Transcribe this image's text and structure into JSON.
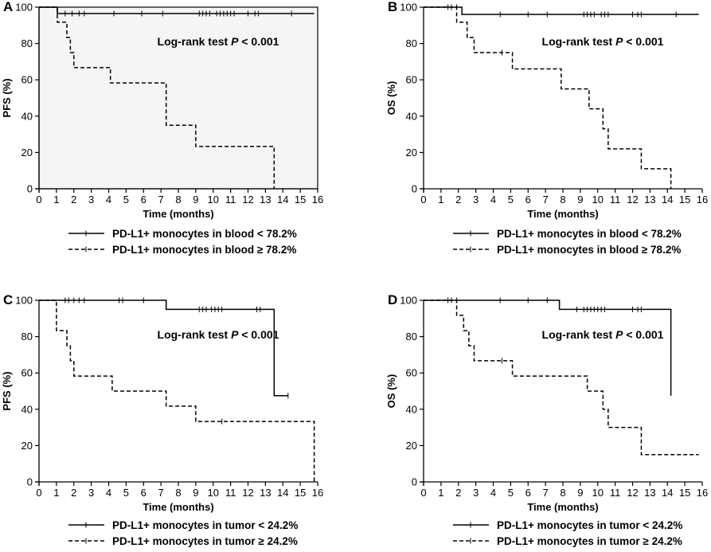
{
  "chart_data": [
    {
      "type": "line",
      "panel": "A",
      "ylabel": "PFS (%)",
      "xlabel": "Time (months)",
      "annotation": {
        "prefix": "Log-rank test ",
        "p": "P",
        "suffix": " < 0.001"
      },
      "xlim": [
        0,
        16
      ],
      "ylim": [
        0,
        100
      ],
      "xticks": [
        0,
        1,
        2,
        3,
        4,
        5,
        6,
        7,
        8,
        9,
        10,
        11,
        12,
        13,
        14,
        15,
        16
      ],
      "yticks": [
        0,
        20,
        40,
        60,
        80,
        100
      ],
      "shaded": true,
      "series": [
        {
          "name": "PD-L1+ monocytes in blood < 78.2%",
          "style": "solid",
          "steps": [
            [
              0,
              100
            ],
            [
              1.05,
              96.5
            ],
            [
              15.8,
              96.5
            ]
          ],
          "censored": [
            [
              1.5,
              96.5
            ],
            [
              1.9,
              96.5
            ],
            [
              2.3,
              96.5
            ],
            [
              2.6,
              96.5
            ],
            [
              4.3,
              96.5
            ],
            [
              5.9,
              96.5
            ],
            [
              7.1,
              96.5
            ],
            [
              9.2,
              96.5
            ],
            [
              9.4,
              96.5
            ],
            [
              9.6,
              96.5
            ],
            [
              9.8,
              96.5
            ],
            [
              10.2,
              96.5
            ],
            [
              10.4,
              96.5
            ],
            [
              10.6,
              96.5
            ],
            [
              10.8,
              96.5
            ],
            [
              11.0,
              96.5
            ],
            [
              11.2,
              96.5
            ],
            [
              12.0,
              96.5
            ],
            [
              12.4,
              96.5
            ],
            [
              12.6,
              96.5
            ],
            [
              14.5,
              96.5
            ]
          ]
        },
        {
          "name": "PD-L1+ monocytes in blood ≥ 78.2%",
          "style": "dashed",
          "steps": [
            [
              0,
              100
            ],
            [
              1.05,
              91.7
            ],
            [
              1.6,
              83.3
            ],
            [
              1.8,
              75
            ],
            [
              2.0,
              66.7
            ],
            [
              4.1,
              58.3
            ],
            [
              7.3,
              35
            ],
            [
              9.0,
              23.3
            ],
            [
              13.5,
              0
            ]
          ],
          "censored": []
        }
      ]
    },
    {
      "type": "line",
      "panel": "B",
      "ylabel": "OS (%)",
      "xlabel": "Time (months)",
      "annotation": {
        "prefix": "Log-rank test ",
        "p": "P",
        "suffix": " < 0.001"
      },
      "xlim": [
        0,
        16
      ],
      "ylim": [
        0,
        100
      ],
      "xticks": [
        0,
        1,
        2,
        3,
        4,
        5,
        6,
        7,
        8,
        9,
        10,
        11,
        12,
        13,
        14,
        15,
        16
      ],
      "yticks": [
        0,
        20,
        40,
        60,
        80,
        100
      ],
      "shaded": false,
      "series": [
        {
          "name": "PD-L1+ monocytes in blood < 78.2%",
          "style": "solid",
          "steps": [
            [
              0,
              100
            ],
            [
              2.2,
              96
            ],
            [
              15.8,
              96
            ]
          ],
          "censored": [
            [
              1.4,
              100
            ],
            [
              1.6,
              100
            ],
            [
              1.9,
              100
            ],
            [
              4.4,
              96
            ],
            [
              6.0,
              96
            ],
            [
              7.1,
              96
            ],
            [
              9.2,
              96
            ],
            [
              9.4,
              96
            ],
            [
              9.6,
              96
            ],
            [
              9.8,
              96
            ],
            [
              10.2,
              96
            ],
            [
              10.4,
              96
            ],
            [
              10.6,
              96
            ],
            [
              12.0,
              96
            ],
            [
              12.3,
              96
            ],
            [
              12.5,
              96
            ],
            [
              14.5,
              96
            ]
          ]
        },
        {
          "name": "PD-L1+ monocytes in blood ≥ 78.2%",
          "style": "dashed",
          "steps": [
            [
              0,
              100
            ],
            [
              1.9,
              91.7
            ],
            [
              2.5,
              83.3
            ],
            [
              2.9,
              75
            ],
            [
              5.1,
              66
            ],
            [
              7.9,
              55
            ],
            [
              9.5,
              44
            ],
            [
              10.3,
              33
            ],
            [
              10.6,
              22
            ],
            [
              12.5,
              11
            ],
            [
              14.2,
              0
            ]
          ],
          "censored": [
            [
              4.5,
              75
            ]
          ]
        }
      ]
    },
    {
      "type": "line",
      "panel": "C",
      "ylabel": "PFS (%)",
      "xlabel": "Time (months)",
      "annotation": {
        "prefix": "Log-rank test ",
        "p": "P",
        "suffix": " < 0.001"
      },
      "xlim": [
        0,
        16
      ],
      "ylim": [
        0,
        100
      ],
      "xticks": [
        0,
        1,
        2,
        3,
        4,
        5,
        6,
        7,
        8,
        9,
        10,
        11,
        12,
        13,
        14,
        15,
        16
      ],
      "yticks": [
        0,
        20,
        40,
        60,
        80,
        100
      ],
      "shaded": false,
      "series": [
        {
          "name": "PD-L1+ monocytes in tumor < 24.2%",
          "style": "solid",
          "steps": [
            [
              0,
              100
            ],
            [
              7.3,
              95
            ],
            [
              13.5,
              47.5
            ],
            [
              14.3,
              47.5
            ]
          ],
          "censored": [
            [
              1.5,
              100
            ],
            [
              1.7,
              100
            ],
            [
              2.0,
              100
            ],
            [
              2.3,
              100
            ],
            [
              2.6,
              100
            ],
            [
              4.6,
              100
            ],
            [
              4.8,
              100
            ],
            [
              6.0,
              100
            ],
            [
              9.2,
              95
            ],
            [
              9.4,
              95
            ],
            [
              9.6,
              95
            ],
            [
              9.9,
              95
            ],
            [
              10.1,
              95
            ],
            [
              10.3,
              95
            ],
            [
              10.5,
              95
            ],
            [
              12.5,
              95
            ],
            [
              12.7,
              95
            ],
            [
              14.3,
              47.5
            ]
          ]
        },
        {
          "name": "PD-L1+ monocytes in tumor ≥ 24.2%",
          "style": "dashed",
          "steps": [
            [
              0,
              100
            ],
            [
              1.0,
              83.3
            ],
            [
              1.6,
              75
            ],
            [
              1.8,
              66.7
            ],
            [
              2.0,
              58.3
            ],
            [
              4.2,
              50
            ],
            [
              7.3,
              41.7
            ],
            [
              9.0,
              33.3
            ],
            [
              15.8,
              0
            ]
          ],
          "censored": [
            [
              10.5,
              33.3
            ]
          ]
        }
      ]
    },
    {
      "type": "line",
      "panel": "D",
      "ylabel": "OS (%)",
      "xlabel": "Time (months)",
      "annotation": {
        "prefix": "Log-rank test ",
        "p": "P",
        "suffix": " < 0.001"
      },
      "xlim": [
        0,
        16
      ],
      "ylim": [
        0,
        100
      ],
      "xticks": [
        0,
        1,
        2,
        3,
        4,
        5,
        6,
        7,
        8,
        9,
        10,
        11,
        12,
        13,
        14,
        15,
        16
      ],
      "yticks": [
        0,
        20,
        40,
        60,
        80,
        100
      ],
      "shaded": false,
      "series": [
        {
          "name": "PD-L1+ monocytes in tumor < 24.2%",
          "style": "solid",
          "steps": [
            [
              0,
              100
            ],
            [
              7.8,
              95
            ],
            [
              14.2,
              47.5
            ]
          ],
          "censored": [
            [
              1.4,
              100
            ],
            [
              1.6,
              100
            ],
            [
              1.9,
              100
            ],
            [
              4.4,
              100
            ],
            [
              6.0,
              100
            ],
            [
              7.1,
              100
            ],
            [
              8.8,
              95
            ],
            [
              9.2,
              95
            ],
            [
              9.4,
              95
            ],
            [
              9.6,
              95
            ],
            [
              9.8,
              95
            ],
            [
              10.0,
              95
            ],
            [
              10.2,
              95
            ],
            [
              10.4,
              95
            ],
            [
              12.0,
              95
            ],
            [
              12.3,
              95
            ],
            [
              12.5,
              95
            ]
          ]
        },
        {
          "name": "PD-L1+ monocytes in tumor ≥ 24.2%",
          "style": "dashed",
          "steps": [
            [
              0,
              100
            ],
            [
              1.9,
              91.7
            ],
            [
              2.3,
              83.3
            ],
            [
              2.6,
              75
            ],
            [
              2.9,
              66.7
            ],
            [
              5.1,
              58.3
            ],
            [
              9.4,
              50
            ],
            [
              10.3,
              40
            ],
            [
              10.6,
              30
            ],
            [
              12.5,
              15
            ],
            [
              15.8,
              15
            ]
          ],
          "censored": [
            [
              4.5,
              66.7
            ]
          ]
        }
      ]
    }
  ]
}
